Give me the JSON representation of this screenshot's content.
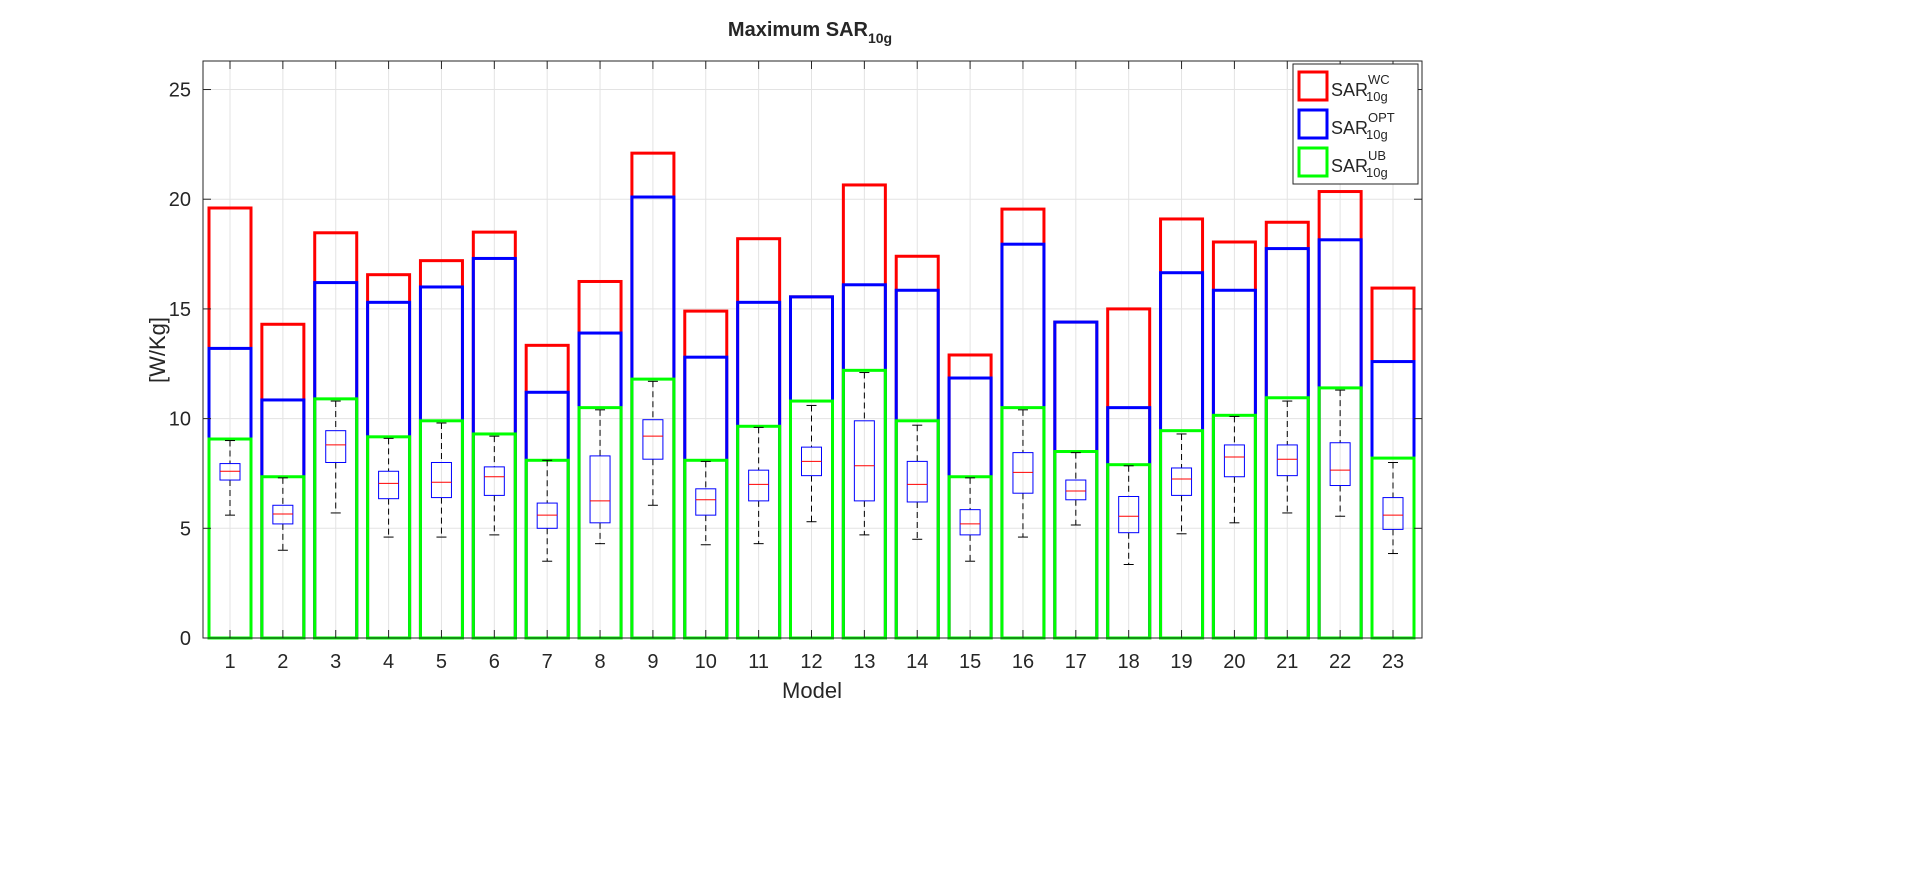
{
  "chart_data": {
    "type": "bar",
    "title": "Maximum SAR",
    "title_subscript": "10g",
    "xlabel": "Model",
    "ylabel": "[W/Kg]",
    "ylim": [
      0,
      26.3
    ],
    "yticks": [
      0,
      5,
      10,
      15,
      20,
      25
    ],
    "grid": true,
    "legend_position": "top-right",
    "categories": [
      "1",
      "2",
      "3",
      "4",
      "5",
      "6",
      "7",
      "8",
      "9",
      "10",
      "11",
      "12",
      "13",
      "14",
      "15",
      "16",
      "17",
      "18",
      "19",
      "20",
      "21",
      "22",
      "23"
    ],
    "series": [
      {
        "name": "SAR",
        "sub": "10g",
        "sup": "WC",
        "color": "#ff0000",
        "values": [
          19.6,
          14.3,
          18.47,
          16.56,
          17.2,
          18.5,
          13.34,
          16.25,
          22.1,
          14.9,
          18.2,
          15.55,
          20.65,
          17.4,
          12.9,
          19.55,
          14.4,
          15.0,
          19.1,
          18.05,
          18.95,
          20.35,
          15.95
        ]
      },
      {
        "name": "SAR",
        "sub": "10g",
        "sup": "OPT",
        "color": "#0000ff",
        "values": [
          13.2,
          10.85,
          16.2,
          15.3,
          16.0,
          17.3,
          11.2,
          13.9,
          20.1,
          12.8,
          15.3,
          15.55,
          16.1,
          15.85,
          11.85,
          17.95,
          14.4,
          10.5,
          16.65,
          15.85,
          17.75,
          18.15,
          12.6
        ]
      },
      {
        "name": "SAR",
        "sub": "10g",
        "sup": "UB",
        "color": "#00ff00",
        "values": [
          9.07,
          7.35,
          10.9,
          9.17,
          9.9,
          9.3,
          8.1,
          10.5,
          11.8,
          8.1,
          9.65,
          10.8,
          12.2,
          9.9,
          7.35,
          10.5,
          8.5,
          7.9,
          9.45,
          10.15,
          10.95,
          11.4,
          8.2
        ]
      }
    ],
    "boxplots": {
      "box_color": "#0000ff",
      "median_color": "#ff0000",
      "whisker_color": "#000000",
      "min": [
        5.6,
        4.0,
        5.7,
        4.6,
        4.6,
        4.7,
        3.5,
        4.3,
        6.05,
        4.25,
        4.3,
        5.3,
        4.7,
        4.5,
        3.5,
        4.6,
        5.15,
        3.35,
        4.75,
        5.25,
        5.7,
        5.55,
        3.85
      ],
      "q1": [
        7.2,
        5.2,
        8.0,
        6.35,
        6.4,
        6.5,
        5.0,
        5.25,
        8.15,
        5.6,
        6.25,
        7.4,
        6.25,
        6.2,
        4.7,
        6.6,
        6.3,
        4.8,
        6.5,
        7.35,
        7.4,
        6.95,
        4.95
      ],
      "median": [
        7.6,
        5.65,
        8.8,
        7.05,
        7.1,
        7.35,
        5.6,
        6.25,
        9.2,
        6.3,
        7.0,
        8.05,
        7.85,
        7.0,
        5.2,
        7.55,
        6.7,
        5.55,
        7.25,
        8.25,
        8.15,
        7.65,
        5.6
      ],
      "q3": [
        7.95,
        6.05,
        9.45,
        7.6,
        8.0,
        7.8,
        6.15,
        8.3,
        9.95,
        6.8,
        7.65,
        8.7,
        9.9,
        8.05,
        5.85,
        8.45,
        7.2,
        6.45,
        7.75,
        8.8,
        8.8,
        8.9,
        6.4
      ],
      "max": [
        9.0,
        7.3,
        10.8,
        9.1,
        9.8,
        9.2,
        8.1,
        10.4,
        11.7,
        8.05,
        9.6,
        10.6,
        12.1,
        9.7,
        7.3,
        10.4,
        8.45,
        7.85,
        9.3,
        10.1,
        10.8,
        11.3,
        8.0
      ]
    }
  }
}
